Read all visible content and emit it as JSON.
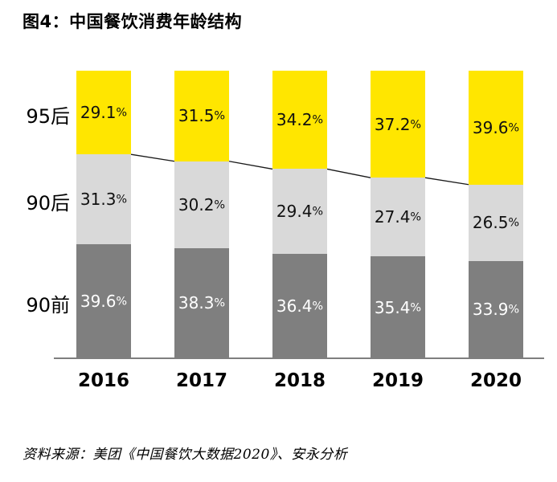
{
  "title": "图4：中国餐饮消费年龄结构",
  "source": "资料来源：美团《中国餐饮大数据2020》、安永分析",
  "chart_data": {
    "type": "bar",
    "variant": "stacked-100-percent-column",
    "title": "图4：中国餐饮消费年龄结构",
    "categories": [
      "2016",
      "2017",
      "2018",
      "2019",
      "2020"
    ],
    "series": [
      {
        "name": "95后",
        "color": "#FFE600",
        "label_color": "#111111",
        "values": [
          29.1,
          31.5,
          34.2,
          37.2,
          39.6
        ]
      },
      {
        "name": "90后",
        "color": "#D9D9D9",
        "label_color": "#111111",
        "values": [
          31.3,
          30.2,
          29.4,
          27.4,
          26.5
        ]
      },
      {
        "name": "90前",
        "color": "#7F7F7F",
        "label_color": "#FFFFFF",
        "values": [
          39.6,
          38.3,
          36.4,
          35.4,
          33.9
        ]
      }
    ],
    "unit": "%",
    "ylim": [
      0,
      100
    ],
    "grid": false,
    "legend_position": "row-labels-left-of-first-bar",
    "connector_line_between": [
      "95后",
      "90后"
    ],
    "axis_color": "#7F7F7F",
    "connector_color": "#1A1A1A"
  }
}
